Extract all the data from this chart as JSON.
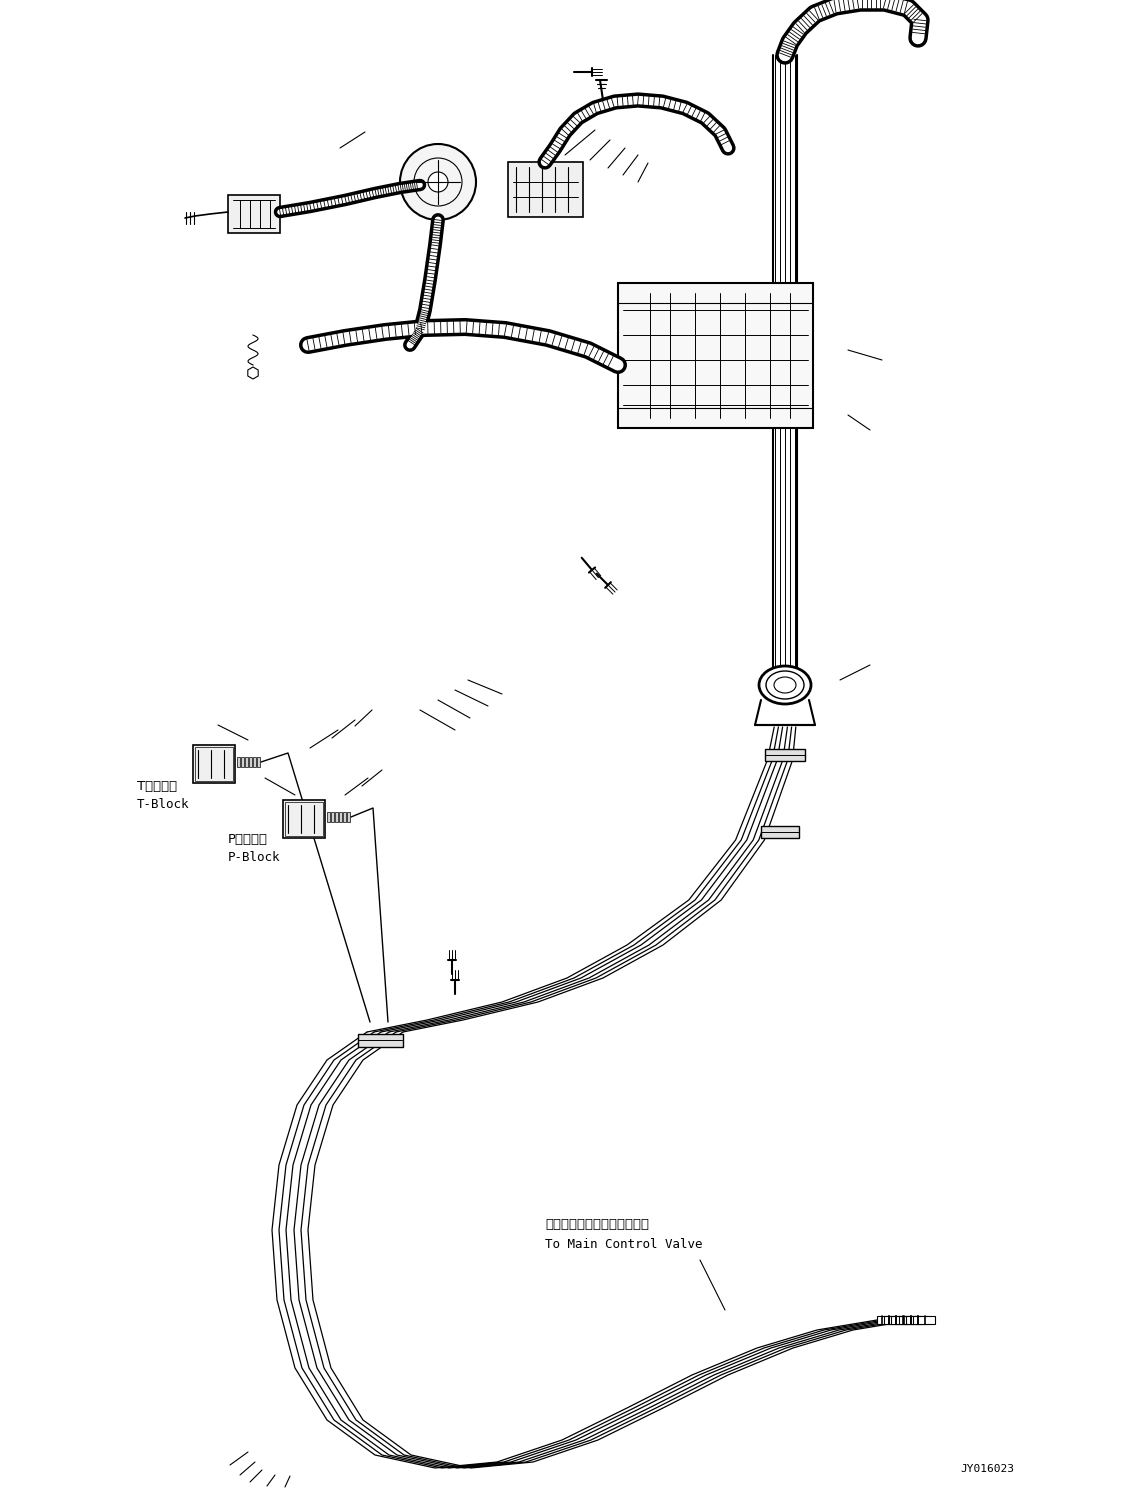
{
  "bg_color": "#ffffff",
  "line_color": "#000000",
  "fig_width": 11.43,
  "fig_height": 14.89,
  "dpi": 100,
  "watermark": "JY016023",
  "label_t_block_jp": "Tブロック",
  "label_t_block_en": "T-Block",
  "label_p_block_jp": "Pブロック",
  "label_p_block_en": "P-Block",
  "label_valve_jp": "メインコントロールバルブへ",
  "label_valve_en": "To Main Control Valve"
}
